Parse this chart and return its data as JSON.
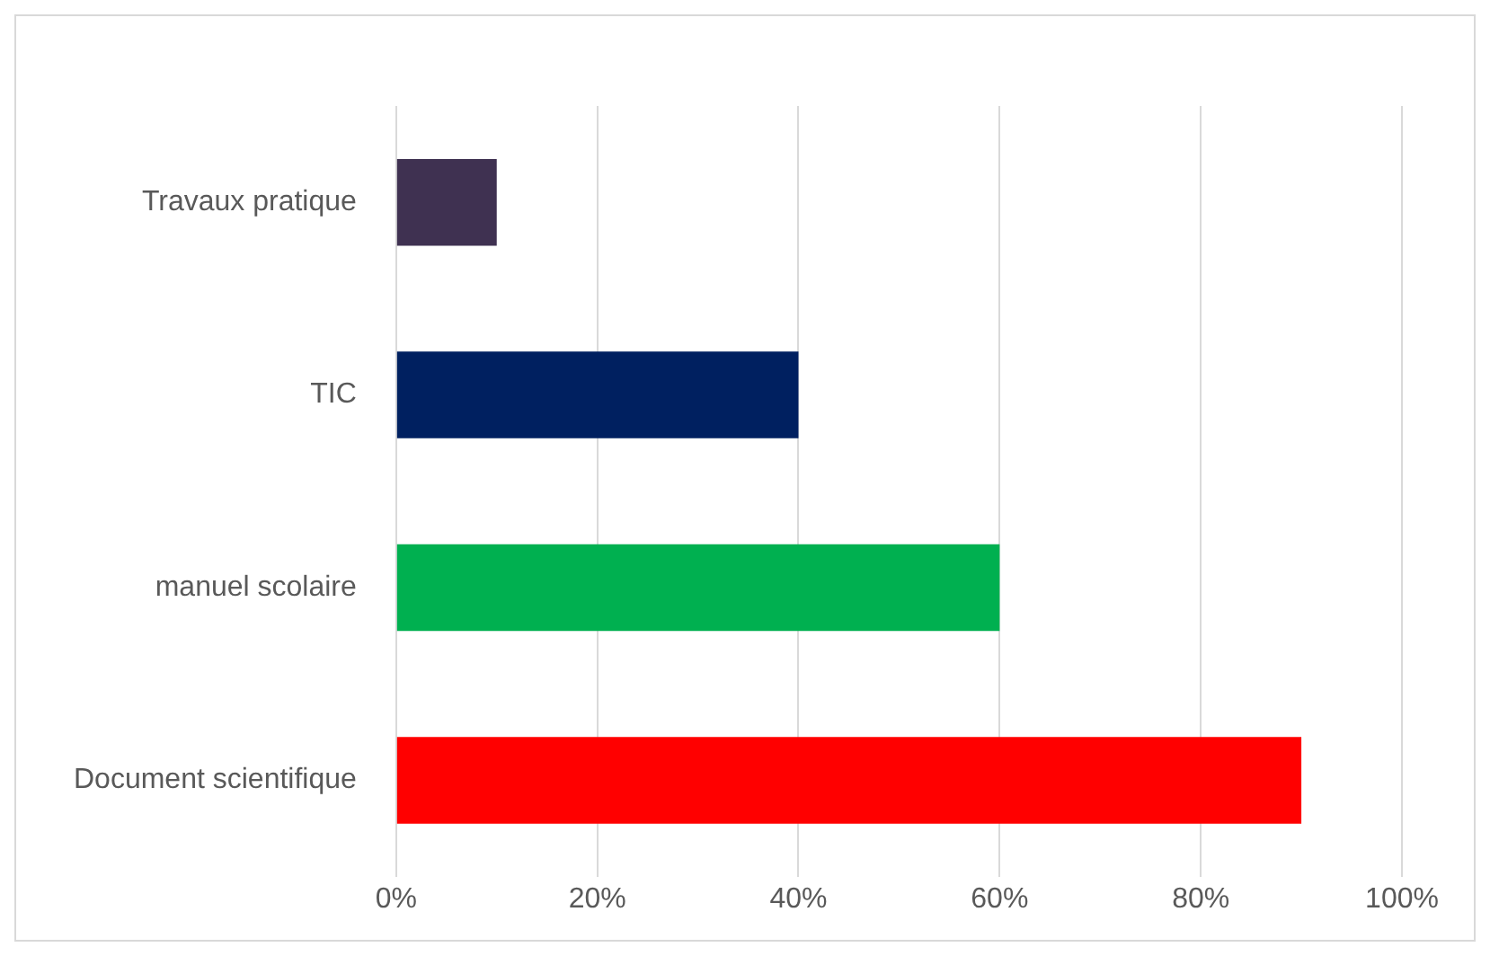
{
  "chart_data": {
    "type": "bar",
    "orientation": "horizontal",
    "categories": [
      "Travaux pratique",
      "TIC",
      "manuel scolaire",
      "Document scientifique"
    ],
    "values": [
      10,
      40,
      60,
      90
    ],
    "colors": [
      "#3f3151",
      "#002060",
      "#00b050",
      "#ff0000"
    ],
    "xlim": [
      0,
      100
    ],
    "xticks": [
      {
        "value": 0,
        "label": "0%"
      },
      {
        "value": 20,
        "label": "20%"
      },
      {
        "value": 40,
        "label": "40%"
      },
      {
        "value": 60,
        "label": "60%"
      },
      {
        "value": 80,
        "label": "80%"
      },
      {
        "value": 100,
        "label": "100%"
      }
    ],
    "grid": "x",
    "legend": false
  }
}
